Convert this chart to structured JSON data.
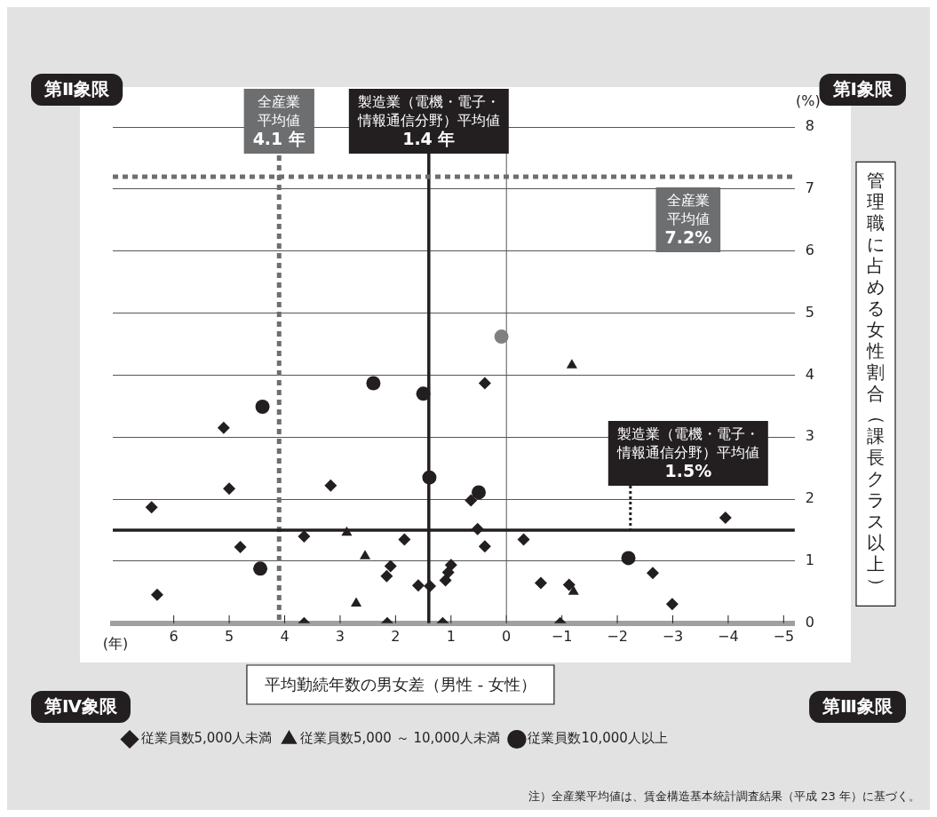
{
  "chart_data": {
    "type": "scatter",
    "xlabel": "平均勤続年数の男女差（男性 - 女性）",
    "ylabel": "管理職に占める女性割合（課長クラス以上）",
    "xlim": [
      7.1,
      -5.2
    ],
    "xticks": [
      6,
      5,
      4,
      3,
      2,
      1,
      0,
      {
        "value": -1,
        "label": "−1"
      },
      {
        "value": -2,
        "label": "−2"
      },
      {
        "value": -3,
        "label": "−3"
      },
      {
        "value": -4,
        "label": "−4"
      },
      {
        "value": -5,
        "label": "−5"
      }
    ],
    "ylim": [
      0,
      8
    ],
    "yticks": [
      0,
      1,
      2,
      3,
      4,
      5,
      6,
      7,
      8
    ],
    "grid": "y",
    "legend": "bottom",
    "series": [
      {
        "name": "従業員数5,000人未満",
        "marker": "diamond",
        "color": "#231f20",
        "x": [
          6.4,
          6.3,
          5.1,
          5.0,
          4.8,
          3.65,
          3.65,
          3.17,
          2.09,
          2.16,
          2.15,
          1.84,
          1.59,
          1.38,
          1.15,
          1.0,
          1.05,
          1.1,
          0.64,
          0.52,
          0.39,
          0.39,
          -0.31,
          -0.62,
          -0.97,
          -1.13,
          -2.64,
          -2.99,
          -3.95
        ],
        "values": [
          1.87,
          0.46,
          3.15,
          2.17,
          1.23,
          1.4,
          0,
          2.22,
          0.92,
          0.76,
          0,
          1.35,
          0.61,
          0.6,
          0,
          0.94,
          0.82,
          0.69,
          1.98,
          1.52,
          1.24,
          3.87,
          1.35,
          0.65,
          0,
          0.62,
          0.81,
          0.31,
          1.7
        ]
      },
      {
        "name": "従業員数5,000 ～ 10,000人未満",
        "marker": "triangle",
        "color": "#231f20",
        "x": [
          2.88,
          2.55,
          2.71,
          -1.18,
          -1.21
        ],
        "values": [
          1.46,
          1.08,
          0.32,
          4.16,
          0.51
        ]
      },
      {
        "name": "従業員数10,000人以上",
        "marker": "circle",
        "color": "#231f20",
        "x": [
          4.4,
          4.44,
          2.4,
          1.5,
          1.39,
          0.5,
          -2.2
        ],
        "values": [
          3.49,
          0.88,
          3.87,
          3.7,
          2.35,
          2.11,
          1.05
        ]
      },
      {
        "marker": "circle",
        "color": "#808080",
        "x": [
          0.09
        ],
        "values": [
          4.62
        ]
      }
    ],
    "ref_lines": [
      {
        "axis": "x",
        "value": 0,
        "color": "#555555",
        "line_style": "solid"
      },
      {
        "axis": "x",
        "value": 4.1,
        "label": "全産業平均値4.1 年",
        "color": "#6d6e70",
        "line_style": "dashed"
      },
      {
        "axis": "x",
        "value": 1.4,
        "label": "製造業（電機・電子・情報通信分野）平均値1.4 年",
        "color": "#231f20",
        "line_style": "solid"
      },
      {
        "axis": "y",
        "value": 7.2,
        "label": "全産業平均値7.2%",
        "color": "#6d6e70",
        "line_style": "dashed"
      },
      {
        "axis": "y",
        "value": 1.5,
        "label": "製造業（電機・電子・情報通信分野）平均値1.5%",
        "color": "#231f20",
        "line_style": "solid"
      }
    ],
    "annotations": [
      "第Ⅱ象限",
      "第Ⅰ象限",
      "第Ⅳ象限",
      "第Ⅲ象限",
      "(%)",
      "(年)",
      "注）全産業平均値は、賃金構造基本統計調査結果（平成 23 年）に基づく。"
    ]
  }
}
